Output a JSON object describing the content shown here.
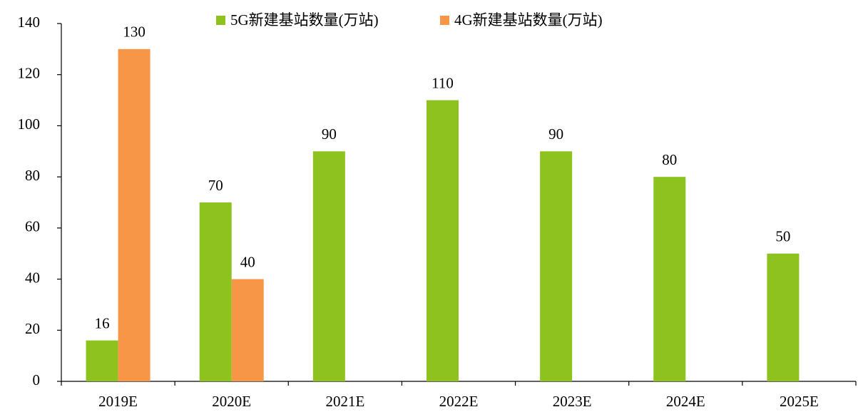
{
  "chart_data": {
    "type": "bar",
    "categories": [
      "2019E",
      "2020E",
      "2021E",
      "2022E",
      "2023E",
      "2024E",
      "2025E"
    ],
    "series": [
      {
        "name": "5G新建基站数量(万站)",
        "color": "#8dc21f",
        "values": [
          16,
          70,
          90,
          110,
          90,
          80,
          50
        ]
      },
      {
        "name": "4G新建基站数量(万站)",
        "color": "#f79646",
        "values": [
          130,
          40,
          null,
          null,
          null,
          null,
          null
        ]
      }
    ],
    "ylim": [
      0,
      140
    ],
    "yticks": [
      0,
      20,
      40,
      60,
      80,
      100,
      120,
      140
    ],
    "grid": false,
    "legend": "top"
  }
}
